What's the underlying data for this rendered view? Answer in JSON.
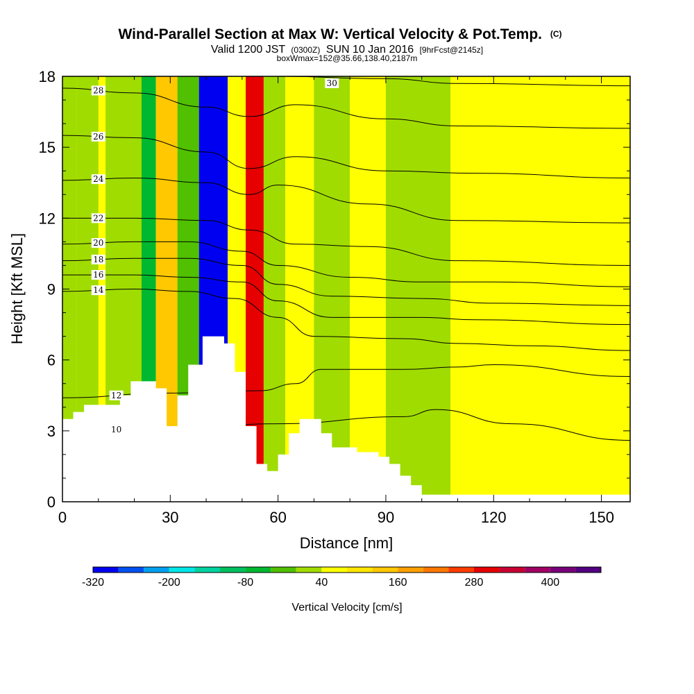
{
  "chart_data": {
    "type": "heatmap",
    "title": "Wind-Parallel Section at Max W: Vertical Velocity & Pot.Temp.",
    "title_mark": "(C)",
    "subtitle_parts": [
      "Valid 1200 JST",
      "(0300Z)",
      "SUN 10 Jan 2016",
      "[9hrFcst@2145z]"
    ],
    "subtitle2": "boxWmax=152@35.66,138.40,2187m",
    "xlabel": "Distance [nm]",
    "ylabel": "Height [Kft MSL]",
    "xlim": [
      0,
      158
    ],
    "ylim": [
      0,
      18
    ],
    "x_ticks": [
      "0",
      "30",
      "60",
      "90",
      "120",
      "150"
    ],
    "y_ticks": [
      "0",
      "3",
      "6",
      "9",
      "12",
      "15",
      "18"
    ],
    "x_tick_values": [
      0,
      30,
      60,
      90,
      120,
      150
    ],
    "y_tick_values": [
      0,
      3,
      6,
      9,
      12,
      15,
      18
    ],
    "colorbar": {
      "title": "Vertical Velocity [cm/s]",
      "labels": [
        "-320",
        "-200",
        "-80",
        "40",
        "160",
        "280",
        "400"
      ],
      "colors": [
        "#0000f0",
        "#0050f0",
        "#00a0f0",
        "#00e6e6",
        "#00d2a0",
        "#00c060",
        "#00b830",
        "#50c000",
        "#a0dc00",
        "#ffff00",
        "#ffe600",
        "#ffc800",
        "#ffa000",
        "#ff7800",
        "#ff3c00",
        "#e60000",
        "#c80032",
        "#a00064",
        "#780078",
        "#500080"
      ]
    },
    "terrain_kft": [
      [
        0,
        3.5
      ],
      [
        3,
        3.5
      ],
      [
        3,
        3.8
      ],
      [
        6,
        3.8
      ],
      [
        6,
        4.1
      ],
      [
        16,
        4.1
      ],
      [
        16,
        4.5
      ],
      [
        19,
        4.5
      ],
      [
        19,
        5.1
      ],
      [
        26,
        5.1
      ],
      [
        26,
        4.8
      ],
      [
        29,
        4.8
      ],
      [
        29,
        3.2
      ],
      [
        32,
        3.2
      ],
      [
        32,
        4.5
      ],
      [
        35,
        4.5
      ],
      [
        35,
        5.8
      ],
      [
        39,
        5.8
      ],
      [
        39,
        7.0
      ],
      [
        45,
        7.0
      ],
      [
        45,
        6.7
      ],
      [
        48,
        6.7
      ],
      [
        48,
        5.5
      ],
      [
        51,
        5.5
      ],
      [
        51,
        3.2
      ],
      [
        54,
        3.2
      ],
      [
        54,
        1.6
      ],
      [
        57,
        1.6
      ],
      [
        57,
        1.3
      ],
      [
        60,
        1.3
      ],
      [
        60,
        2.0
      ],
      [
        63,
        2.0
      ],
      [
        63,
        2.9
      ],
      [
        66,
        2.9
      ],
      [
        66,
        3.5
      ],
      [
        72,
        3.5
      ],
      [
        72,
        2.9
      ],
      [
        75,
        2.9
      ],
      [
        75,
        2.3
      ],
      [
        82,
        2.3
      ],
      [
        82,
        2.1
      ],
      [
        88,
        2.1
      ],
      [
        88,
        1.9
      ],
      [
        91,
        1.9
      ],
      [
        91,
        1.6
      ],
      [
        94,
        1.6
      ],
      [
        94,
        1.1
      ],
      [
        97,
        1.1
      ],
      [
        97,
        0.7
      ],
      [
        100,
        0.7
      ],
      [
        100,
        0.3
      ],
      [
        158,
        0.3
      ]
    ],
    "theta_contours": [
      {
        "label": "10",
        "levels": [
          [
            0,
            3.0
          ],
          [
            30,
            3.1
          ],
          [
            60,
            3.3
          ],
          [
            95,
            3.6
          ],
          [
            104,
            3.9
          ],
          [
            125,
            3.3
          ],
          [
            158,
            2.6
          ]
        ]
      },
      {
        "label": "12",
        "levels": [
          [
            0,
            4.4
          ],
          [
            30,
            4.6
          ],
          [
            55,
            4.7
          ],
          [
            65,
            5.0
          ],
          [
            72,
            5.6
          ],
          [
            95,
            5.6
          ],
          [
            110,
            5.7
          ],
          [
            120,
            5.8
          ],
          [
            158,
            5.3
          ]
        ]
      },
      {
        "label": "14",
        "levels": [
          [
            0,
            8.9
          ],
          [
            20,
            9.0
          ],
          [
            35,
            8.9
          ],
          [
            48,
            8.6
          ],
          [
            60,
            7.8
          ],
          [
            70,
            7.0
          ],
          [
            95,
            6.9
          ],
          [
            110,
            6.7
          ],
          [
            130,
            6.6
          ],
          [
            158,
            6.4
          ]
        ]
      },
      {
        "label": "16",
        "levels": [
          [
            0,
            9.6
          ],
          [
            20,
            9.6
          ],
          [
            35,
            9.5
          ],
          [
            50,
            9.3
          ],
          [
            60,
            8.5
          ],
          [
            75,
            7.8
          ],
          [
            100,
            7.8
          ],
          [
            115,
            7.7
          ],
          [
            158,
            7.5
          ]
        ]
      },
      {
        "label": "18",
        "levels": [
          [
            0,
            10.2
          ],
          [
            20,
            10.3
          ],
          [
            35,
            10.3
          ],
          [
            50,
            10.0
          ],
          [
            60,
            9.2
          ],
          [
            75,
            8.7
          ],
          [
            100,
            8.6
          ],
          [
            120,
            8.4
          ],
          [
            158,
            8.3
          ]
        ]
      },
      {
        "label": "20",
        "levels": [
          [
            0,
            10.9
          ],
          [
            20,
            11.0
          ],
          [
            35,
            11.0
          ],
          [
            50,
            10.6
          ],
          [
            60,
            10.0
          ],
          [
            80,
            9.5
          ],
          [
            100,
            9.3
          ],
          [
            120,
            9.3
          ],
          [
            158,
            9.1
          ]
        ]
      },
      {
        "label": "22",
        "levels": [
          [
            0,
            12.0
          ],
          [
            20,
            12.0
          ],
          [
            40,
            11.9
          ],
          [
            52,
            11.5
          ],
          [
            65,
            10.9
          ],
          [
            85,
            10.8
          ],
          [
            110,
            10.2
          ],
          [
            158,
            10.0
          ]
        ]
      },
      {
        "label": "24",
        "levels": [
          [
            0,
            13.6
          ],
          [
            20,
            13.7
          ],
          [
            40,
            13.5
          ],
          [
            52,
            13.0
          ],
          [
            60,
            13.4
          ],
          [
            85,
            12.6
          ],
          [
            110,
            11.9
          ],
          [
            158,
            11.8
          ]
        ]
      },
      {
        "label": "26",
        "levels": [
          [
            0,
            15.5
          ],
          [
            20,
            15.4
          ],
          [
            40,
            14.8
          ],
          [
            52,
            14.1
          ],
          [
            65,
            14.6
          ],
          [
            90,
            14.0
          ],
          [
            115,
            13.9
          ],
          [
            158,
            13.7
          ]
        ]
      },
      {
        "label": "28",
        "levels": [
          [
            0,
            17.5
          ],
          [
            20,
            17.3
          ],
          [
            40,
            16.7
          ],
          [
            52,
            16.3
          ],
          [
            65,
            16.8
          ],
          [
            90,
            16.2
          ],
          [
            110,
            15.9
          ],
          [
            158,
            15.8
          ]
        ]
      },
      {
        "label": "30",
        "levels": [
          [
            60,
            18.0
          ],
          [
            90,
            17.9
          ],
          [
            110,
            17.7
          ],
          [
            158,
            17.6
          ]
        ]
      }
    ],
    "w_bands": [
      {
        "x": [
          0,
          158
        ],
        "w": 60
      },
      {
        "x": [
          0,
          4
        ],
        "w": 0
      },
      {
        "x": [
          4,
          10
        ],
        "w": 0
      },
      {
        "x": [
          12,
          22
        ],
        "w": 10
      },
      {
        "x": [
          22,
          26
        ],
        "w": -60
      },
      {
        "x": [
          26,
          32
        ],
        "w": 120
      },
      {
        "x": [
          32,
          38
        ],
        "w": -20
      },
      {
        "x": [
          38,
          46
        ],
        "w": -300
      },
      {
        "x": [
          46,
          51
        ],
        "w": 40
      },
      {
        "x": [
          51,
          56
        ],
        "w": 300
      },
      {
        "x": [
          56,
          62
        ],
        "w": 0
      },
      {
        "x": [
          62,
          70
        ],
        "w": 60
      },
      {
        "x": [
          70,
          80
        ],
        "w": 20
      },
      {
        "x": [
          80,
          90
        ],
        "w": 40
      },
      {
        "x": [
          90,
          108
        ],
        "w": 20
      },
      {
        "x": [
          108,
          130
        ],
        "w": 40
      },
      {
        "x": [
          130,
          158
        ],
        "w": 50
      }
    ]
  }
}
